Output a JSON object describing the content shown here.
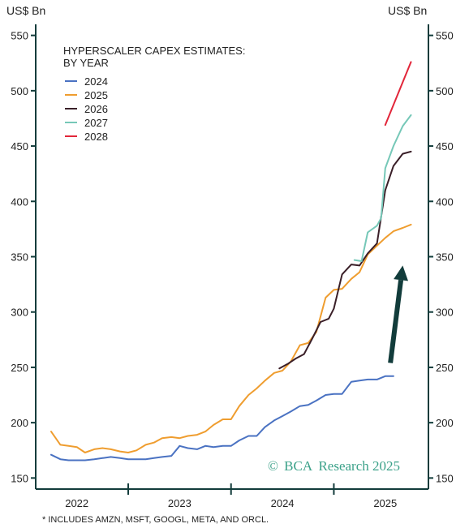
{
  "chart_data": {
    "type": "line",
    "title": "HYPERSCALER CAPEX ESTIMATES:",
    "subtitle": "BY YEAR",
    "ylabel_left": "US$ Bn",
    "ylabel_right": "US$ Bn",
    "ylim": [
      140,
      560
    ],
    "yticks": [
      150,
      200,
      250,
      300,
      350,
      400,
      450,
      500,
      550
    ],
    "xlim": [
      2021.6,
      2025.42
    ],
    "xticks": [
      "2022",
      "2023",
      "2024",
      "2025"
    ],
    "xtick_positions": [
      2022.0,
      2023.0,
      2024.0,
      2025.0
    ],
    "x_year_boundaries": [
      2022.5,
      2023.5,
      2024.5
    ],
    "legend_position": "top-left",
    "grid": false,
    "series": [
      {
        "name": "2024",
        "color": "#4a72c2",
        "x": [
          2021.75,
          2021.84,
          2021.92,
          2022.0,
          2022.08,
          2022.17,
          2022.25,
          2022.33,
          2022.42,
          2022.5,
          2022.58,
          2022.67,
          2022.75,
          2022.83,
          2022.92,
          2023.0,
          2023.08,
          2023.17,
          2023.25,
          2023.33,
          2023.42,
          2023.5,
          2023.58,
          2023.67,
          2023.75,
          2023.83,
          2023.92,
          2024.0,
          2024.08,
          2024.17,
          2024.25,
          2024.33,
          2024.42,
          2024.5,
          2024.58,
          2024.67,
          2024.75,
          2024.83,
          2024.92,
          2025.0,
          2025.08
        ],
        "values": [
          171,
          167,
          166,
          166,
          166,
          167,
          168,
          169,
          168,
          167,
          167,
          167,
          168,
          169,
          170,
          179,
          177,
          176,
          179,
          178,
          179,
          179,
          184,
          188,
          188,
          196,
          202,
          206,
          210,
          215,
          216,
          220,
          225,
          226,
          226,
          237,
          238,
          239,
          239,
          242,
          242
        ]
      },
      {
        "name": "2025",
        "color": "#ef9d2f",
        "x": [
          2021.75,
          2021.84,
          2021.92,
          2022.0,
          2022.08,
          2022.17,
          2022.25,
          2022.33,
          2022.42,
          2022.5,
          2022.58,
          2022.67,
          2022.75,
          2022.83,
          2022.92,
          2023.0,
          2023.08,
          2023.17,
          2023.25,
          2023.33,
          2023.42,
          2023.5,
          2023.58,
          2023.67,
          2023.75,
          2023.83,
          2023.92,
          2024.0,
          2024.08,
          2024.17,
          2024.25,
          2024.33,
          2024.42,
          2024.5,
          2024.58,
          2024.67,
          2024.75,
          2024.83,
          2024.92,
          2025.0,
          2025.08,
          2025.17,
          2025.25
        ],
        "values": [
          192,
          180,
          179,
          178,
          173,
          176,
          177,
          176,
          174,
          173,
          175,
          180,
          182,
          186,
          187,
          186,
          188,
          189,
          192,
          198,
          203,
          203,
          215,
          225,
          231,
          238,
          245,
          247,
          255,
          270,
          272,
          282,
          313,
          320,
          321,
          330,
          336,
          352,
          360,
          367,
          373,
          376,
          379
        ]
      },
      {
        "name": "2026",
        "color": "#3a1f28",
        "x": [
          2023.97,
          2024.05,
          2024.13,
          2024.21,
          2024.29,
          2024.37,
          2024.45,
          2024.5,
          2024.58,
          2024.67,
          2024.75,
          2024.83,
          2024.92,
          2025.0,
          2025.08,
          2025.17,
          2025.25
        ],
        "values": [
          249,
          253,
          258,
          262,
          276,
          291,
          294,
          303,
          334,
          343,
          342,
          353,
          362,
          410,
          432,
          443,
          445
        ]
      },
      {
        "name": "2027",
        "color": "#76c8b8",
        "x": [
          2024.7,
          2024.77,
          2024.83,
          2024.92,
          2024.96,
          2025.0,
          2025.08,
          2025.17,
          2025.25
        ],
        "values": [
          347,
          346,
          372,
          378,
          385,
          430,
          450,
          468,
          478
        ]
      },
      {
        "name": "2028",
        "color": "#e2263a",
        "x": [
          2025.0,
          2025.25
        ],
        "values": [
          469,
          526
        ]
      }
    ],
    "annotations": {
      "arrow": {
        "from": [
          2025.05,
          254
        ],
        "to": [
          2025.17,
          342
        ],
        "color": "#123c3b"
      }
    }
  },
  "footnote": "* INCLUDES AMZN, MSFT, GOOGL, META, AND ORCL.",
  "credit": {
    "copyright_symbol": "©",
    "brand": "BCA",
    "text": "Research 2025",
    "color": "#3ba189"
  },
  "colors": {
    "axis": "#123c3b",
    "background": "#ffffff"
  }
}
